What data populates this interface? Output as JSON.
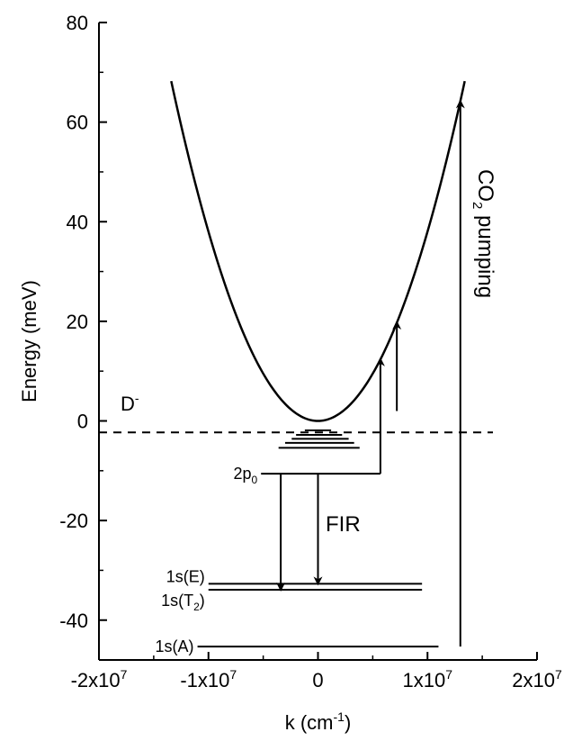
{
  "chart_data": {
    "type": "line",
    "title": "",
    "xlabel": "k (cm",
    "xlabel_sup": "-1",
    "xlabel_close": ")",
    "ylabel": "Energy (meV)",
    "xlim": [
      -20000000,
      20000000
    ],
    "ylim": [
      -48,
      80
    ],
    "grid": false,
    "y_ticks": [
      {
        "value": 80,
        "label": "80"
      },
      {
        "value": 60,
        "label": "60"
      },
      {
        "value": 40,
        "label": "40"
      },
      {
        "value": 20,
        "label": "20"
      },
      {
        "value": 0,
        "label": "0"
      },
      {
        "value": -20,
        "label": "-20"
      },
      {
        "value": -40,
        "label": "-40"
      }
    ],
    "y_minor_ticks": [
      70,
      50,
      30,
      10,
      -10,
      -30
    ],
    "x_ticks": [
      {
        "value": -20000000,
        "base": "-2x10",
        "exp": "7"
      },
      {
        "value": -10000000,
        "base": "-1x10",
        "exp": "7"
      },
      {
        "value": 0,
        "base": "0",
        "exp": ""
      },
      {
        "value": 10000000,
        "base": "1x10",
        "exp": "7"
      },
      {
        "value": 20000000,
        "base": "2x10",
        "exp": "7"
      }
    ],
    "x_minor_ticks": [
      -15000000,
      -5000000,
      5000000,
      15000000
    ],
    "parabola": {
      "a_meV_per_cm2": 3.8e-13,
      "x_range": [
        -13400000,
        13400000
      ]
    },
    "d_minus_line": {
      "y": -2.3,
      "label": "D",
      "label_sup": "-"
    },
    "levels": [
      {
        "name": "1s(E)",
        "label_base": "1s(E)",
        "label_sub": "",
        "label_tail": "",
        "y": -32.7,
        "x_range": [
          -10000000,
          9500000
        ]
      },
      {
        "name": "1s(T2)",
        "label_base": "1s(T",
        "label_sub": "2",
        "label_tail": ")",
        "y": -33.9,
        "x_range": [
          -10000000,
          9500000
        ]
      },
      {
        "name": "1s(A)",
        "label_base": "1s(A)",
        "label_sub": "",
        "label_tail": "",
        "y": -45.3,
        "x_range": [
          -11000000,
          11000000
        ]
      },
      {
        "name": "2p0",
        "label_base": "2p",
        "label_sub": "0",
        "label_tail": "",
        "y": -10.6,
        "x_range": [
          -5200000,
          5700000
        ]
      }
    ],
    "stacked_levels": [
      {
        "y": -1.9,
        "x_range": [
          -1200000,
          1200000
        ]
      },
      {
        "y": -2.8,
        "x_range": [
          -2000000,
          2200000
        ]
      },
      {
        "y": -3.6,
        "x_range": [
          -2400000,
          2800000
        ]
      },
      {
        "y": -4.4,
        "x_range": [
          -3000000,
          3300000
        ]
      },
      {
        "y": -5.4,
        "x_range": [
          -3600000,
          3800000
        ]
      }
    ],
    "arrows": [
      {
        "name": "fir-arrow-left",
        "x": -3400000,
        "from_y": -10.6,
        "to_y": -33.9
      },
      {
        "name": "fir-arrow-right",
        "x": 0,
        "from_y": -10.6,
        "to_y": -32.7
      },
      {
        "name": "pump-arrow-1",
        "x": 5700000,
        "from_y": -10.6,
        "to_y": 12.4
      },
      {
        "name": "pump-arrow-2",
        "x": 7200000,
        "from_y": 2,
        "to_y": 19.8
      },
      {
        "name": "co2-pump-arrow",
        "x": 13000000,
        "from_y": -45.3,
        "to_y": 64.2
      }
    ],
    "annotations": {
      "fir": "FIR",
      "co2_base": "CO",
      "co2_sub": "2",
      "co2_tail": " pumping"
    }
  }
}
